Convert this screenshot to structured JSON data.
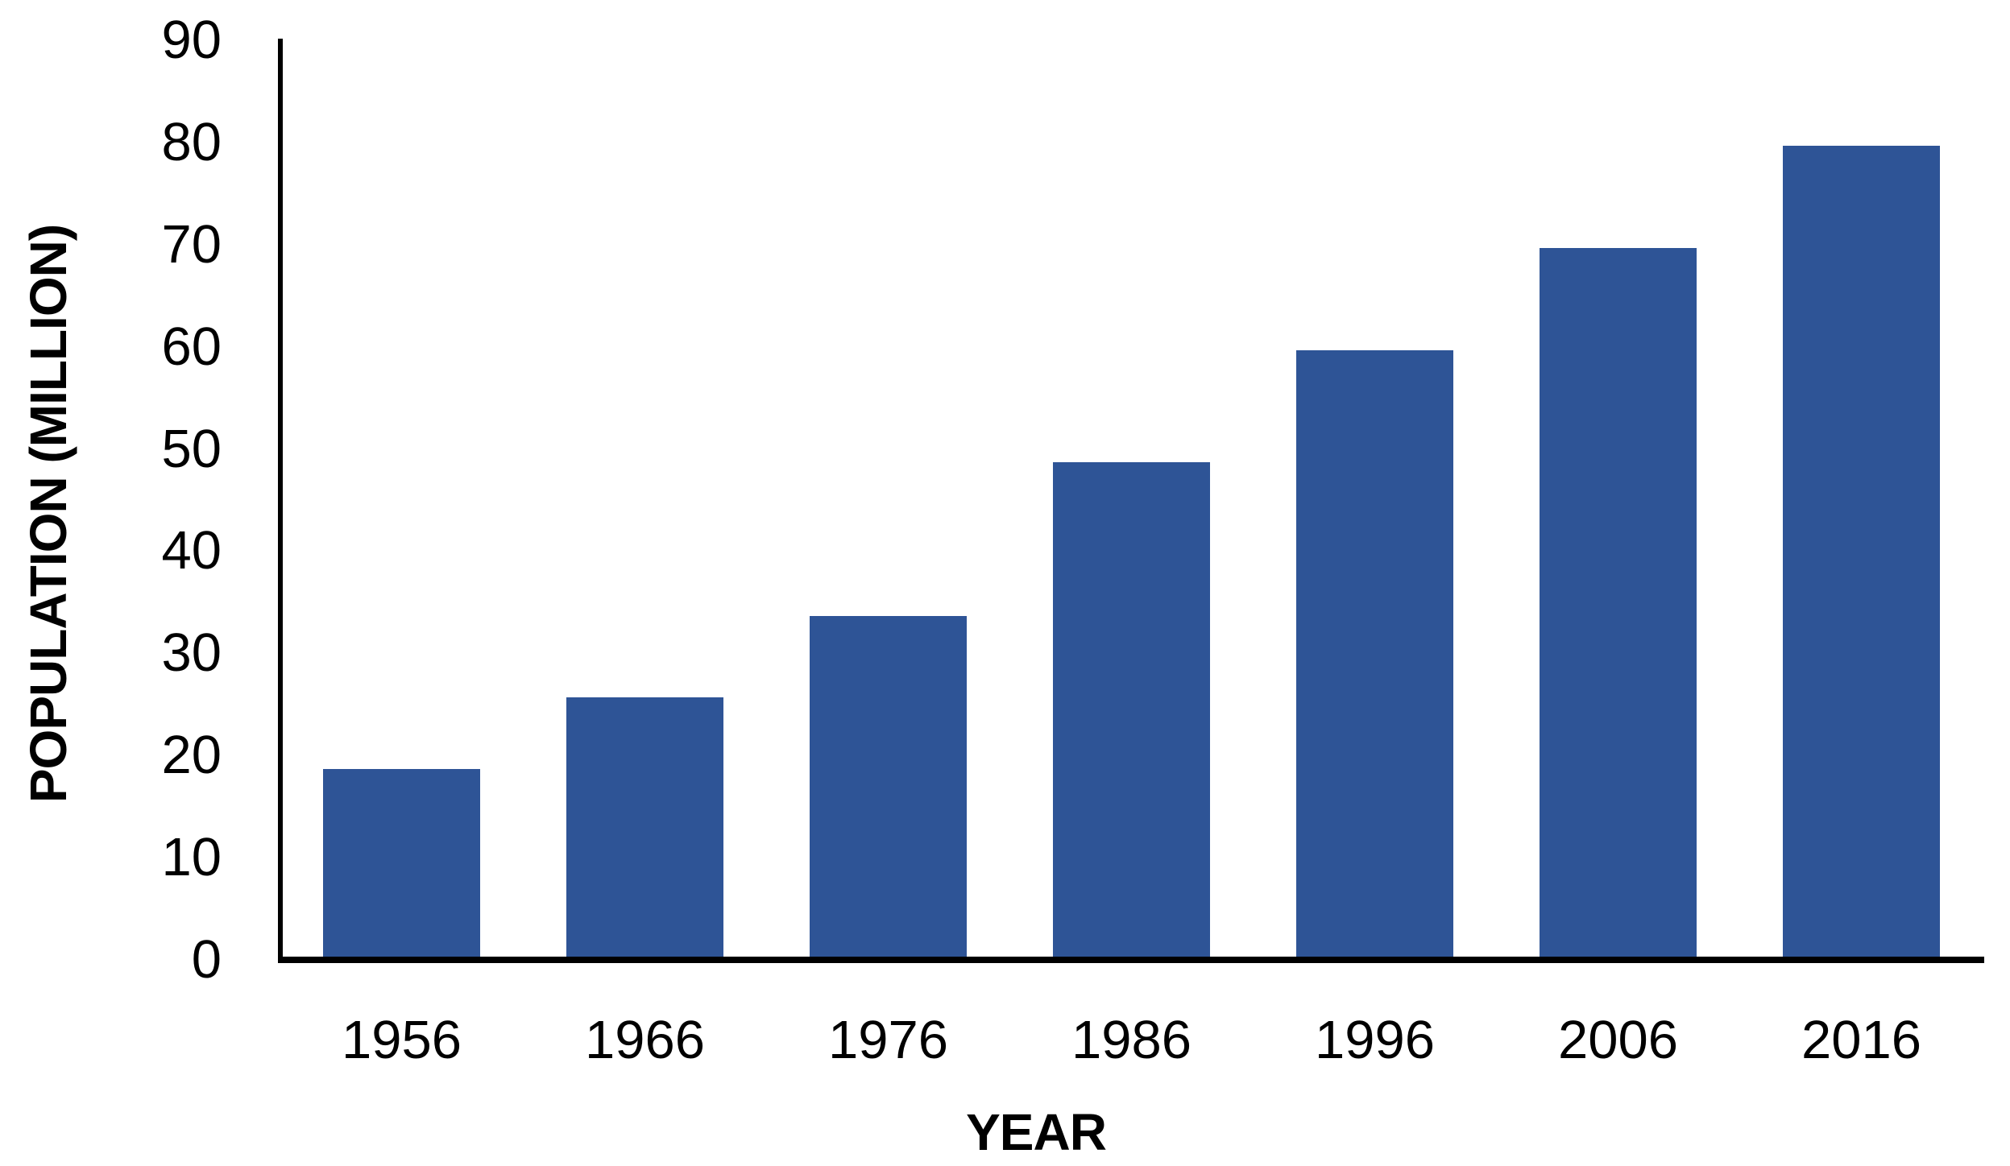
{
  "chart_data": {
    "type": "bar",
    "title": "",
    "xlabel": "YEAR",
    "ylabel": "POPULATION (MILLION)",
    "categories": [
      "1956",
      "1966",
      "1976",
      "1986",
      "1996",
      "2006",
      "2016"
    ],
    "values": [
      19,
      26,
      34,
      49,
      60,
      70,
      80
    ],
    "yticks": [
      0,
      10,
      20,
      30,
      40,
      50,
      60,
      70,
      80,
      90
    ],
    "ylim": [
      0,
      90
    ],
    "grid": false,
    "legend": false,
    "bar_color": "#2E5496",
    "axis_color": "#000000",
    "text_color": "#000000",
    "background": "#FFFFFF"
  }
}
